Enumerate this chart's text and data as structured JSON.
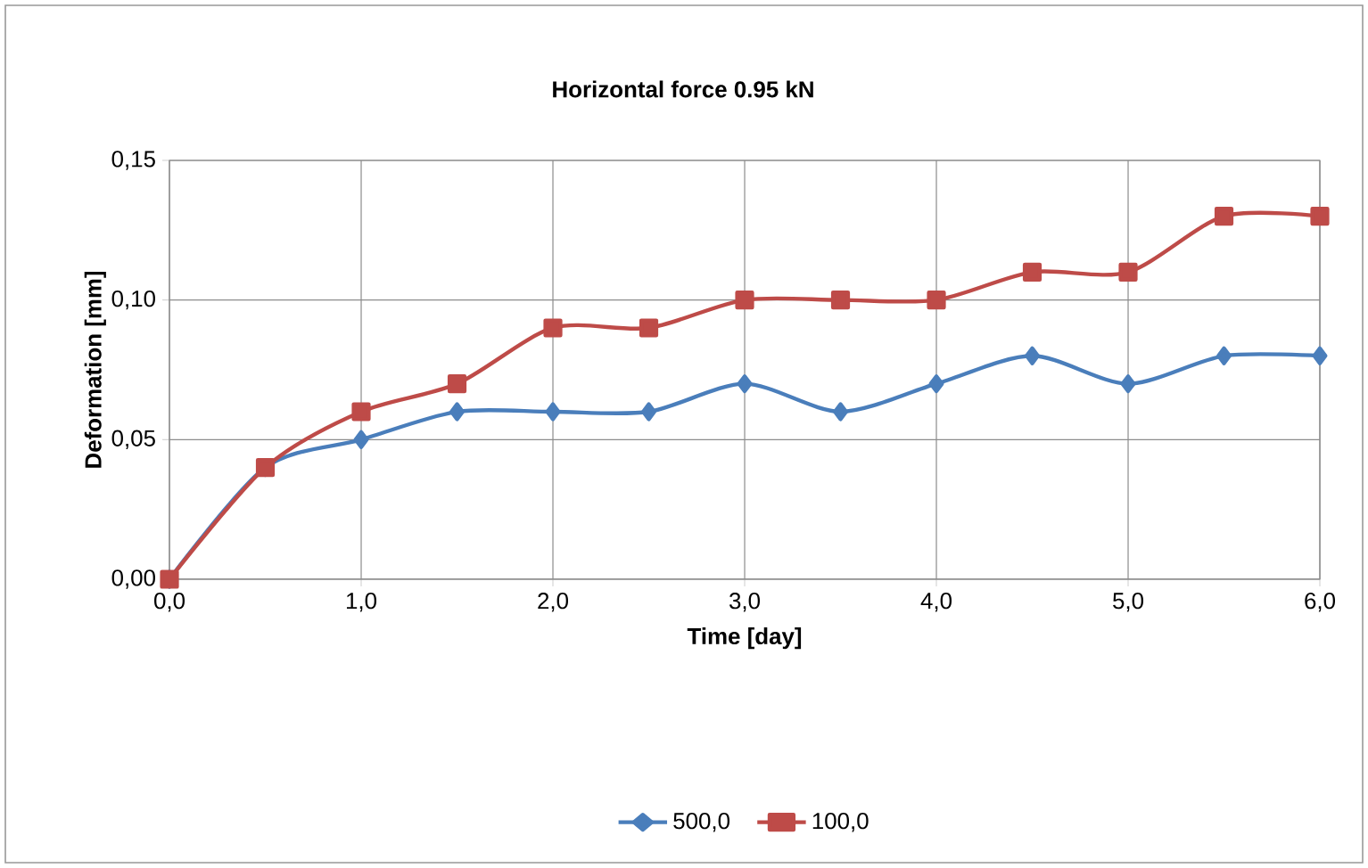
{
  "chart_data": {
    "type": "line",
    "title": "Horizontal force 0.95 kN",
    "xlabel": "Time [day]",
    "ylabel": "Deformation  [mm]",
    "x": [
      0,
      0.5,
      1,
      1.5,
      2,
      2.5,
      3,
      3.5,
      4,
      4.5,
      5,
      5.5,
      6
    ],
    "series": [
      {
        "name": "500,0",
        "color": "#4a7ebb",
        "marker": "diamond",
        "values": [
          0,
          0.04,
          0.05,
          0.06,
          0.06,
          0.06,
          0.07,
          0.06,
          0.07,
          0.08,
          0.07,
          0.08,
          0.08
        ]
      },
      {
        "name": "100,0",
        "color": "#be4b48",
        "marker": "square",
        "values": [
          0,
          0.04,
          0.06,
          0.07,
          0.09,
          0.09,
          0.1,
          0.1,
          0.1,
          0.11,
          0.11,
          0.13,
          0.13
        ]
      }
    ],
    "xlim": [
      0,
      6
    ],
    "ylim": [
      0,
      0.15
    ],
    "xticks": [
      {
        "value": 0,
        "label": "0,0"
      },
      {
        "value": 1,
        "label": "1,0"
      },
      {
        "value": 2,
        "label": "2,0"
      },
      {
        "value": 3,
        "label": "3,0"
      },
      {
        "value": 4,
        "label": "4,0"
      },
      {
        "value": 5,
        "label": "5,0"
      },
      {
        "value": 6,
        "label": "6,0"
      }
    ],
    "yticks": [
      {
        "value": 0,
        "label": "0,00"
      },
      {
        "value": 0.05,
        "label": "0,05"
      },
      {
        "value": 0.1,
        "label": "0,10"
      },
      {
        "value": 0.15,
        "label": "0,15"
      }
    ],
    "grid": true,
    "legend": "bottom",
    "line_style": "solid"
  }
}
